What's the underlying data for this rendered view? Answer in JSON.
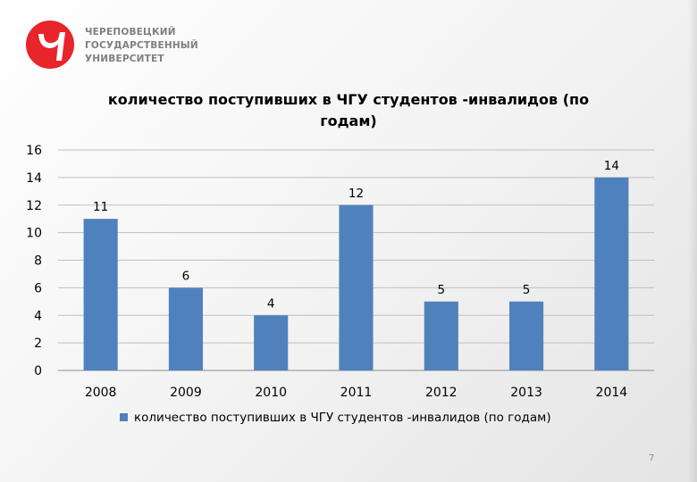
{
  "branding": {
    "line1": "ЧЕРЕПОВЕЦКИЙ",
    "line2": "ГОСУДАРСТВЕННЫЙ",
    "line3": "УНИВЕРСИТЕТ",
    "logo_color": "#e8252a"
  },
  "page_number": "7",
  "chart_data": {
    "type": "bar",
    "title": "количество поступивших в ЧГУ студентов -инвалидов (по годам)",
    "categories": [
      "2008",
      "2009",
      "2010",
      "2011",
      "2012",
      "2013",
      "2014"
    ],
    "series": [
      {
        "name": "количество поступивших в ЧГУ студентов -инвалидов (по годам)",
        "values": [
          11,
          6,
          4,
          12,
          5,
          5,
          14
        ],
        "color": "#4f81bd"
      }
    ],
    "ylim": [
      0,
      16
    ],
    "yticks": [
      0,
      2,
      4,
      6,
      8,
      10,
      12,
      14,
      16
    ],
    "grid": true,
    "legend": "bottom",
    "xlabel": "",
    "ylabel": ""
  }
}
